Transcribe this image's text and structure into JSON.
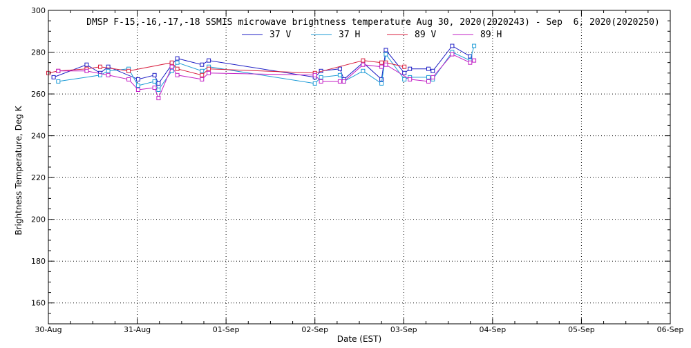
{
  "chart_data": {
    "type": "line",
    "title": "DMSP F-15,-16,-17,-18 SSMIS microwave brightness temperature Aug 30, 2020(2020243) - Sep  6, 2020(2020250)",
    "xlabel": "Date (EST)",
    "ylabel": "Brightness Temperature, Deg K",
    "xlim": [
      "2020-08-30",
      "2020-09-06"
    ],
    "x_tick_labels": [
      "30-Aug",
      "31-Aug",
      "01-Sep",
      "02-Sep",
      "03-Sep",
      "04-Sep",
      "05-Sep",
      "06-Sep"
    ],
    "ylim": [
      150,
      300
    ],
    "y_ticks": [
      160,
      180,
      200,
      220,
      240,
      260,
      280,
      300
    ],
    "grid": true,
    "legend_position": "top",
    "series": [
      {
        "name": "37 V",
        "color": "#1c1cc4",
        "points": [
          [
            "2020-08-30 01:25",
            268
          ],
          [
            "2020-08-30 10:20",
            274
          ],
          [
            "2020-08-30 14:00",
            270
          ],
          [
            "2020-08-30 16:10",
            273
          ],
          [
            "2020-08-31 00:15",
            267
          ],
          [
            "2020-08-31 04:40",
            269
          ],
          [
            "2020-08-31 05:45",
            265
          ],
          [
            "2020-08-31 09:20",
            274
          ],
          [
            "2020-08-31 10:50",
            277
          ],
          [
            "2020-08-31 17:30",
            274
          ],
          [
            "2020-08-31 19:20",
            276
          ],
          [
            "2020-09-02 00:00",
            268
          ],
          [
            "2020-09-02 01:40",
            271
          ],
          [
            "2020-09-02 06:45",
            272
          ],
          [
            "2020-09-02 07:50",
            267
          ],
          [
            "2020-09-02 13:00",
            275
          ],
          [
            "2020-09-02 18:00",
            267
          ],
          [
            "2020-09-02 19:10",
            281
          ],
          [
            "2020-09-03 00:10",
            270
          ],
          [
            "2020-09-03 01:40",
            272
          ],
          [
            "2020-09-03 06:40",
            272
          ],
          [
            "2020-09-03 07:50",
            271
          ],
          [
            "2020-09-03 13:05",
            283
          ],
          [
            "2020-09-03 17:55",
            278
          ]
        ]
      },
      {
        "name": "37 H",
        "color": "#1a9ad6",
        "points": [
          [
            "2020-08-30 02:40",
            266
          ],
          [
            "2020-08-30 14:00",
            269
          ],
          [
            "2020-08-30 16:10",
            271
          ],
          [
            "2020-08-30 21:40",
            272
          ],
          [
            "2020-08-31 00:15",
            264
          ],
          [
            "2020-08-31 04:40",
            266
          ],
          [
            "2020-08-31 05:45",
            262
          ],
          [
            "2020-08-31 09:20",
            271
          ],
          [
            "2020-08-31 10:50",
            275
          ],
          [
            "2020-08-31 17:30",
            271
          ],
          [
            "2020-08-31 19:20",
            273
          ],
          [
            "2020-09-02 00:00",
            265
          ],
          [
            "2020-09-02 01:40",
            268
          ],
          [
            "2020-09-02 06:45",
            269
          ],
          [
            "2020-09-02 07:50",
            266
          ],
          [
            "2020-09-02 13:00",
            271
          ],
          [
            "2020-09-02 18:00",
            265
          ],
          [
            "2020-09-02 19:10",
            279
          ],
          [
            "2020-09-03 00:10",
            267
          ],
          [
            "2020-09-03 01:40",
            268
          ],
          [
            "2020-09-03 06:40",
            268
          ],
          [
            "2020-09-03 07:50",
            267
          ],
          [
            "2020-09-03 13:05",
            280
          ],
          [
            "2020-09-03 17:55",
            276
          ],
          [
            "2020-09-03 19:00",
            283
          ]
        ]
      },
      {
        "name": "89 V",
        "color": "#d81c3c",
        "points": [
          [
            "2020-08-30 00:00",
            270
          ],
          [
            "2020-08-30 02:40",
            271
          ],
          [
            "2020-08-30 10:20",
            272
          ],
          [
            "2020-08-30 14:00",
            273
          ],
          [
            "2020-08-30 21:40",
            271
          ],
          [
            "2020-08-31 09:20",
            275
          ],
          [
            "2020-08-31 10:50",
            272
          ],
          [
            "2020-08-31 17:30",
            269
          ],
          [
            "2020-08-31 19:20",
            272
          ],
          [
            "2020-09-02 00:00",
            270
          ],
          [
            "2020-09-02 13:00",
            276
          ],
          [
            "2020-09-02 18:00",
            275
          ],
          [
            "2020-09-02 19:10",
            275
          ],
          [
            "2020-09-03 00:10",
            273
          ]
        ]
      },
      {
        "name": "89 H",
        "color": "#c21cc4",
        "points": [
          [
            "2020-08-30 02:40",
            271
          ],
          [
            "2020-08-30 10:20",
            271
          ],
          [
            "2020-08-30 16:10",
            269
          ],
          [
            "2020-08-30 21:40",
            267
          ],
          [
            "2020-08-31 00:15",
            262
          ],
          [
            "2020-08-31 04:40",
            263
          ],
          [
            "2020-08-31 05:45",
            258
          ],
          [
            "2020-08-31 09:20",
            273
          ],
          [
            "2020-08-31 10:50",
            269
          ],
          [
            "2020-08-31 17:30",
            267
          ],
          [
            "2020-08-31 19:20",
            270
          ],
          [
            "2020-09-02 00:00",
            269
          ],
          [
            "2020-09-02 01:40",
            266
          ],
          [
            "2020-09-02 06:45",
            266
          ],
          [
            "2020-09-02 07:50",
            266
          ],
          [
            "2020-09-02 13:00",
            274
          ],
          [
            "2020-09-02 18:00",
            273
          ],
          [
            "2020-09-02 19:10",
            274
          ],
          [
            "2020-09-03 01:40",
            267
          ],
          [
            "2020-09-03 06:40",
            266
          ],
          [
            "2020-09-03 07:50",
            268
          ],
          [
            "2020-09-03 13:05",
            279
          ],
          [
            "2020-09-03 17:55",
            275
          ],
          [
            "2020-09-03 19:00",
            276
          ]
        ]
      }
    ]
  }
}
